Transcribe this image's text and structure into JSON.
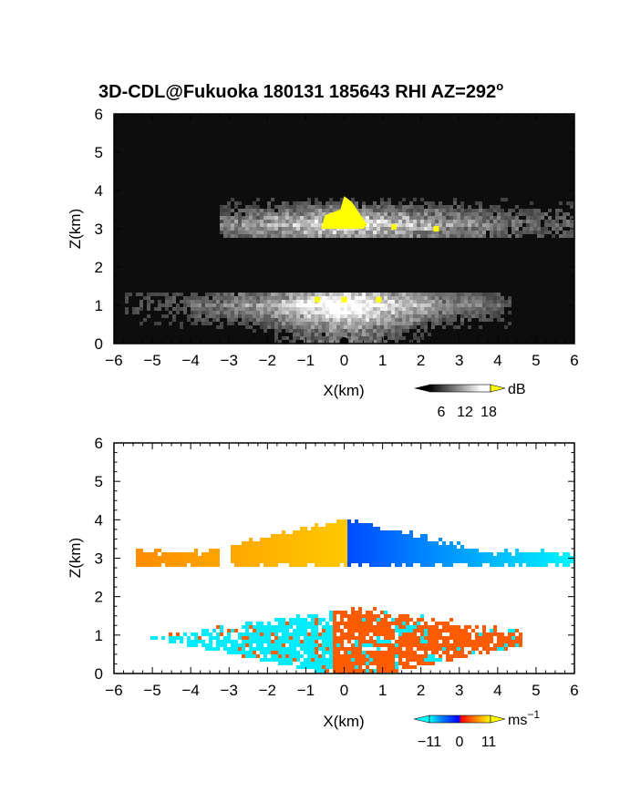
{
  "figure": {
    "title": "3D-CDL@Fukuoka 180131 185643 RHI AZ=292",
    "title_superscript": "o"
  },
  "chart_data": [
    {
      "type": "heatmap",
      "panel": "reflectivity",
      "xlabel": "X(km)",
      "ylabel": "Z(km)",
      "xlim": [
        -6,
        6
      ],
      "ylim": [
        0,
        6
      ],
      "xticks": [
        "-6",
        "-5",
        "-4",
        "-3",
        "-2",
        "-1",
        "0",
        "1",
        "2",
        "3",
        "4",
        "5",
        "6"
      ],
      "yticks": [
        "0",
        "1",
        "2",
        "3",
        "4",
        "5",
        "6"
      ],
      "colorbar": {
        "unit": "dB",
        "ticks": [
          "6",
          "12",
          "18"
        ],
        "range": [
          0,
          21
        ],
        "colors": [
          "#000000",
          "#ffffff",
          "#ffff00"
        ]
      },
      "features": [
        {
          "name": "upper layer",
          "x_range": [
            -3.3,
            6.0
          ],
          "z_range": [
            2.8,
            3.9
          ],
          "max_dB": 21
        },
        {
          "name": "lower layer",
          "x_range": [
            -5.8,
            3.8
          ],
          "z_range": [
            0.0,
            1.4
          ],
          "max_dB": 21
        }
      ]
    },
    {
      "type": "heatmap",
      "panel": "doppler velocity",
      "xlabel": "X(km)",
      "ylabel": "Z(km)",
      "xlim": [
        -6,
        6
      ],
      "ylim": [
        0,
        6
      ],
      "xticks": [
        "-6",
        "-5",
        "-4",
        "-3",
        "-2",
        "-1",
        "0",
        "1",
        "2",
        "3",
        "4",
        "5",
        "6"
      ],
      "yticks": [
        "0",
        "1",
        "2",
        "3",
        "4",
        "5",
        "6"
      ],
      "colorbar": {
        "unit": "ms",
        "unit_exponent": "−1",
        "ticks": [
          "−11",
          "0",
          "11"
        ],
        "range": [
          -14,
          14
        ]
      },
      "features": [
        {
          "name": "upper layer",
          "x_range": [
            -5.5,
            6.0
          ],
          "z_range": [
            2.8,
            4.1
          ],
          "velocity_left": 10,
          "velocity_right": -11
        },
        {
          "name": "lower layer",
          "x_range": [
            -5.5,
            3.8
          ],
          "z_range": [
            0.0,
            1.8
          ],
          "velocity_left": -13,
          "velocity_right": 5
        }
      ]
    }
  ]
}
